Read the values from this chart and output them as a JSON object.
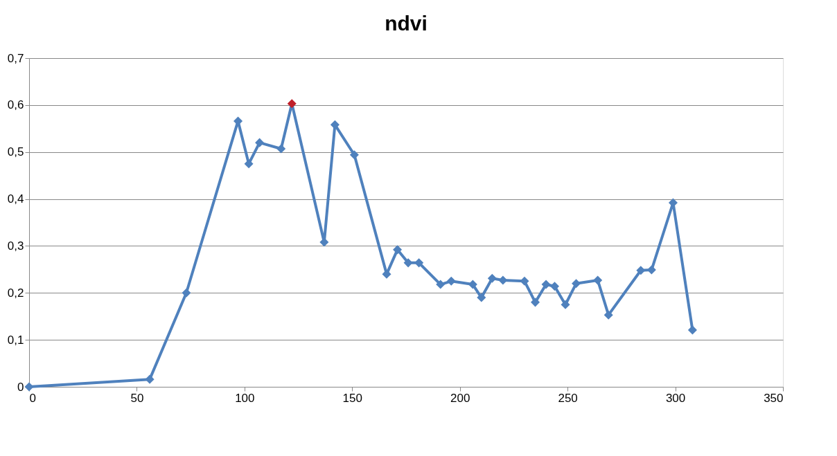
{
  "chart_data": {
    "type": "line",
    "title": "ndvi",
    "x": [
      0,
      56,
      73,
      97,
      102,
      107,
      117,
      122,
      137,
      142,
      151,
      166,
      171,
      176,
      181,
      191,
      196,
      206,
      210,
      215,
      220,
      230,
      235,
      240,
      244,
      249,
      254,
      264,
      269,
      284,
      289,
      299,
      308
    ],
    "series": [
      {
        "color": "#4f81bd",
        "values": [
          0,
          0.016,
          0.2,
          0.566,
          0.475,
          0.52,
          0.507,
          0.603,
          0.308,
          0.558,
          0.494,
          0.24,
          0.292,
          0.264,
          0.264,
          0.218,
          0.225,
          0.218,
          0.19,
          0.231,
          0.227,
          0.225,
          0.18,
          0.218,
          0.214,
          0.175,
          0.22,
          0.227,
          0.153,
          0.248,
          0.249,
          0.392,
          0.121
        ],
        "colors": [
          "#4f81bd",
          "#4f81bd",
          "#4f81bd",
          "#4f81bd",
          "#4f81bd",
          "#4f81bd",
          "#4f81bd",
          "#c0202a",
          "#4f81bd",
          "#4f81bd",
          "#4f81bd",
          "#4f81bd",
          "#4f81bd",
          "#4f81bd",
          "#4f81bd",
          "#4f81bd",
          "#4f81bd",
          "#4f81bd",
          "#4f81bd",
          "#4f81bd",
          "#4f81bd",
          "#4f81bd",
          "#4f81bd",
          "#4f81bd",
          "#4f81bd",
          "#4f81bd",
          "#4f81bd",
          "#4f81bd",
          "#4f81bd",
          "#4f81bd",
          "#4f81bd",
          "#4f81bd",
          "#4f81bd"
        ]
      }
    ],
    "xlim": [
      0,
      350
    ],
    "xticks": [
      0,
      50,
      100,
      150,
      200,
      250,
      300,
      350
    ],
    "ylim": [
      0,
      0.7
    ],
    "yticks": [
      0,
      {
        "value": 0.1,
        "label": "0,1"
      },
      {
        "value": 0.2,
        "label": "0,2"
      },
      {
        "value": 0.3,
        "label": "0,3"
      },
      {
        "value": 0.4,
        "label": "0,4"
      },
      {
        "value": 0.5,
        "label": "0,5"
      },
      {
        "value": 0.6,
        "label": "0,6"
      },
      {
        "value": 0.7,
        "label": "0,7"
      }
    ],
    "grid": "y",
    "marker": "diamond",
    "line_style": "solid"
  }
}
